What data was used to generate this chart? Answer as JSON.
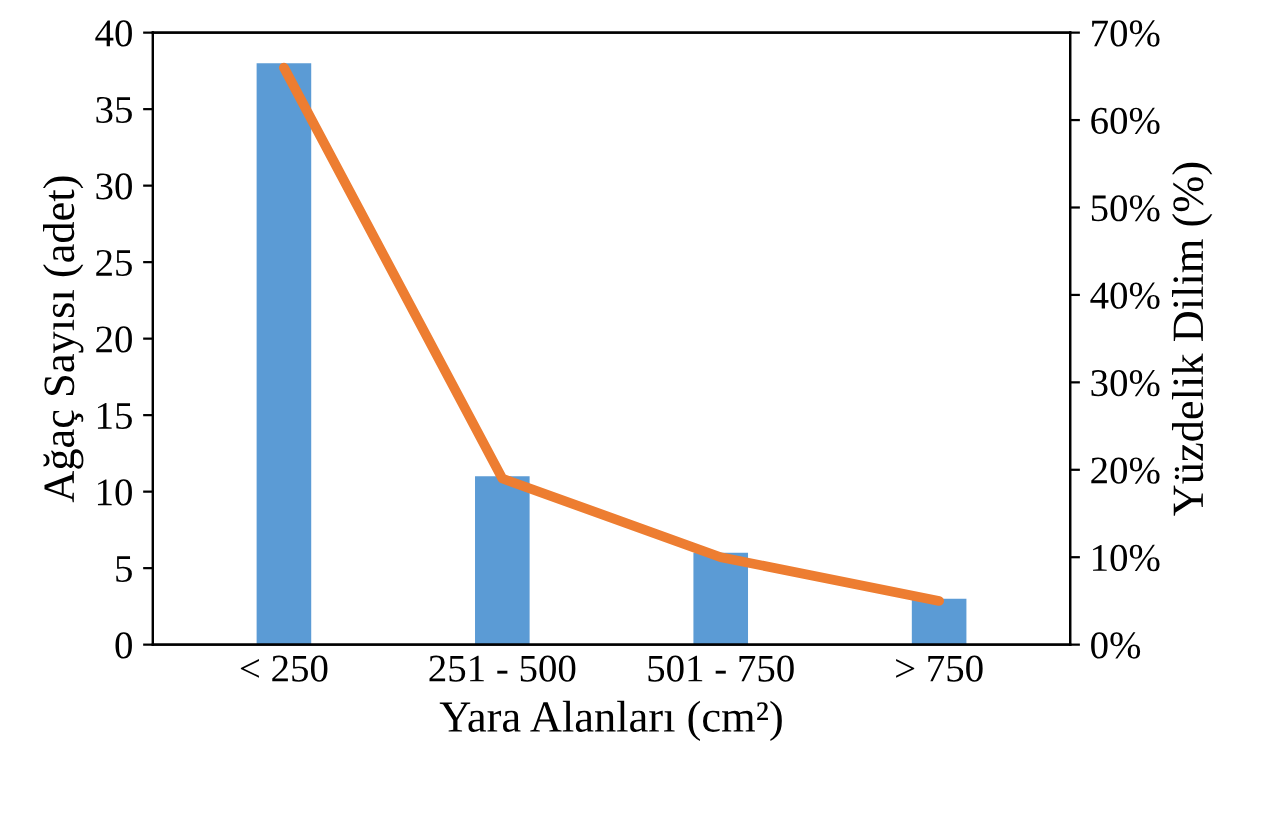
{
  "chart_data": {
    "type": "bar",
    "xlabel": "Yara Alanları (cm²)",
    "ylabel": "Ağaç Sayısı (adet)",
    "y2label": "Yüzdelik Dilim (%)",
    "categories": [
      "< 250",
      "251 - 500",
      "501 - 750",
      "> 750"
    ],
    "series": [
      {
        "color": "#5b9bd5",
        "values": [
          38,
          11,
          6,
          3
        ]
      },
      {
        "type": "line",
        "axis": "y2",
        "color": "#ed7d31",
        "values": [
          66,
          19,
          10,
          5
        ]
      }
    ],
    "ylim": [
      0,
      40
    ],
    "yticks": [
      0,
      5,
      10,
      15,
      20,
      25,
      30,
      35,
      40
    ],
    "y2lim": [
      0,
      70
    ],
    "y2ticks": [
      {
        "value": 0,
        "label": "0%"
      },
      {
        "value": 10,
        "label": "10%"
      },
      {
        "value": 20,
        "label": "20%"
      },
      {
        "value": 30,
        "label": "30%"
      },
      {
        "value": 40,
        "label": "40%"
      },
      {
        "value": 50,
        "label": "50%"
      },
      {
        "value": 60,
        "label": "60%"
      },
      {
        "value": 70,
        "label": "70%"
      }
    ],
    "grid": false,
    "legend": false,
    "marker": "none",
    "line_style": "solid"
  }
}
